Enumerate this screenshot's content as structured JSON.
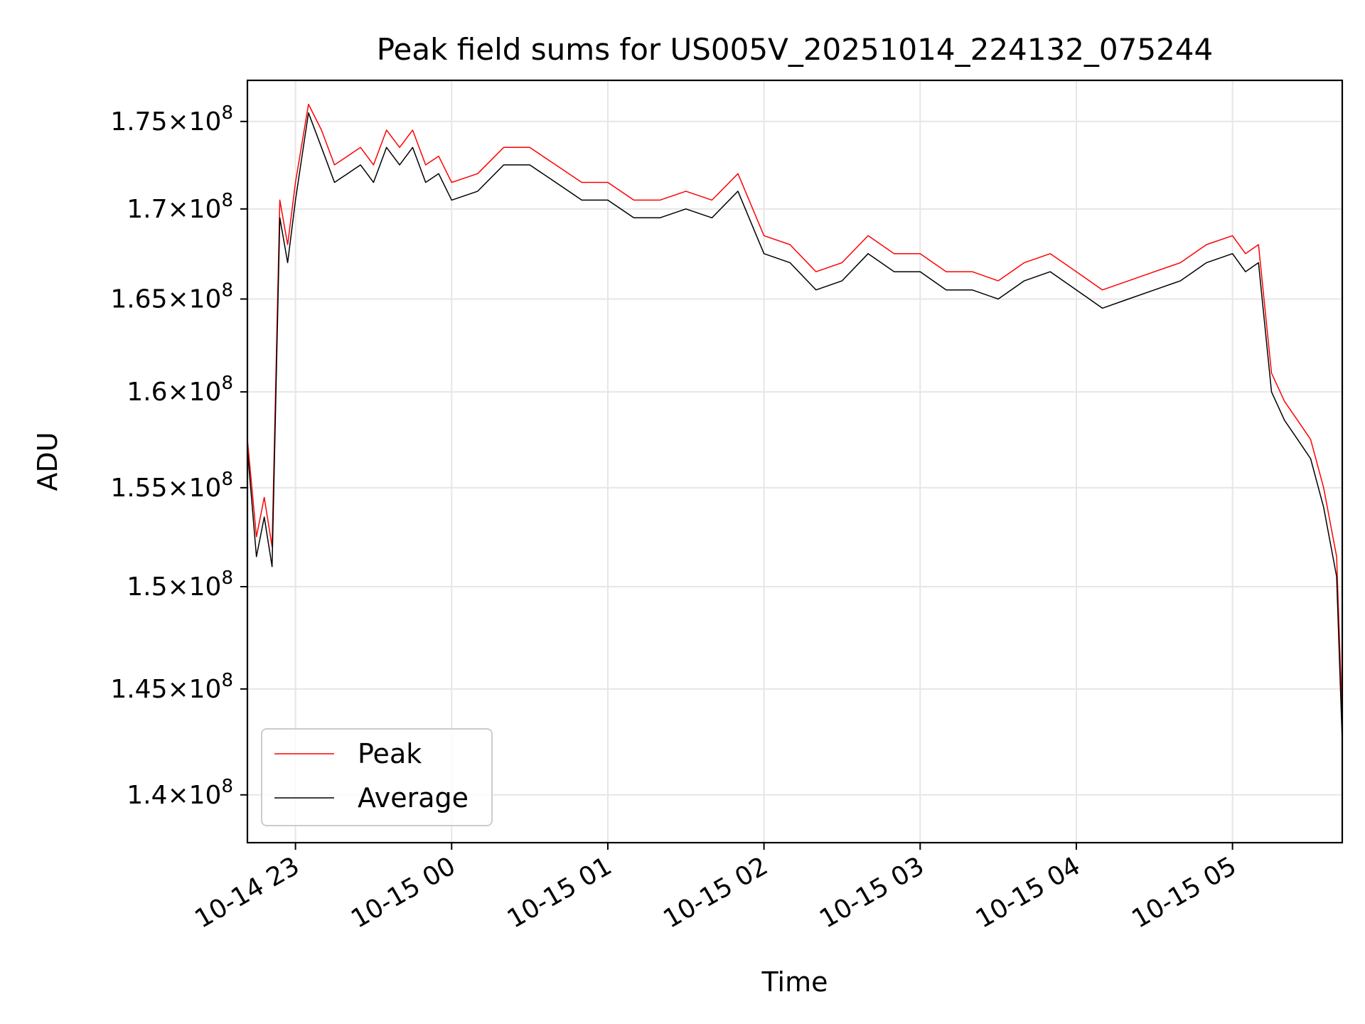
{
  "chart_data": {
    "type": "line",
    "title": "Peak field sums for US005V_20251014_224132_075244",
    "xlabel": "Time",
    "ylabel": "ADU",
    "y_scale": "log",
    "ylim": [
      137800000,
      177400000
    ],
    "xlim": [
      "2025-10-14 22:41:32",
      "2025-10-15 05:42:10"
    ],
    "grid": true,
    "legend_position": "lower-left",
    "x_ticks": [
      {
        "label": "10-14 23",
        "time": "2025-10-14 23:00"
      },
      {
        "label": "10-15 00",
        "time": "2025-10-15 00:00"
      },
      {
        "label": "10-15 01",
        "time": "2025-10-15 01:00"
      },
      {
        "label": "10-15 02",
        "time": "2025-10-15 02:00"
      },
      {
        "label": "10-15 03",
        "time": "2025-10-15 03:00"
      },
      {
        "label": "10-15 04",
        "time": "2025-10-15 04:00"
      },
      {
        "label": "10-15 05",
        "time": "2025-10-15 05:00"
      }
    ],
    "y_ticks": [
      {
        "mantissa": "1.4",
        "value": 140000000
      },
      {
        "mantissa": "1.45",
        "value": 145000000
      },
      {
        "mantissa": "1.5",
        "value": 150000000
      },
      {
        "mantissa": "1.55",
        "value": 155000000
      },
      {
        "mantissa": "1.6",
        "value": 160000000
      },
      {
        "mantissa": "1.65",
        "value": 165000000
      },
      {
        "mantissa": "1.7",
        "value": 170000000
      },
      {
        "mantissa": "1.75",
        "value": 175000000
      }
    ],
    "y_tick_suffix": "×10",
    "y_tick_exponent": "8",
    "x": [
      "2025-10-14 22:41:32",
      "2025-10-14 22:45:00",
      "2025-10-14 22:48:00",
      "2025-10-14 22:51:00",
      "2025-10-14 22:54:00",
      "2025-10-14 22:57:00",
      "2025-10-14 23:00:00",
      "2025-10-14 23:05:00",
      "2025-10-14 23:10:00",
      "2025-10-14 23:15:00",
      "2025-10-14 23:20:00",
      "2025-10-14 23:25:00",
      "2025-10-14 23:30:00",
      "2025-10-14 23:35:00",
      "2025-10-14 23:40:00",
      "2025-10-14 23:45:00",
      "2025-10-14 23:50:00",
      "2025-10-14 23:55:00",
      "2025-10-15 00:00:00",
      "2025-10-15 00:10:00",
      "2025-10-15 00:20:00",
      "2025-10-15 00:30:00",
      "2025-10-15 00:40:00",
      "2025-10-15 00:50:00",
      "2025-10-15 01:00:00",
      "2025-10-15 01:10:00",
      "2025-10-15 01:20:00",
      "2025-10-15 01:30:00",
      "2025-10-15 01:40:00",
      "2025-10-15 01:50:00",
      "2025-10-15 02:00:00",
      "2025-10-15 02:10:00",
      "2025-10-15 02:20:00",
      "2025-10-15 02:30:00",
      "2025-10-15 02:40:00",
      "2025-10-15 02:50:00",
      "2025-10-15 03:00:00",
      "2025-10-15 03:10:00",
      "2025-10-15 03:20:00",
      "2025-10-15 03:30:00",
      "2025-10-15 03:40:00",
      "2025-10-15 03:50:00",
      "2025-10-15 04:00:00",
      "2025-10-15 04:10:00",
      "2025-10-15 04:20:00",
      "2025-10-15 04:30:00",
      "2025-10-15 04:40:00",
      "2025-10-15 04:50:00",
      "2025-10-15 05:00:00",
      "2025-10-15 05:05:00",
      "2025-10-15 05:10:00",
      "2025-10-15 05:15:00",
      "2025-10-15 05:20:00",
      "2025-10-15 05:25:00",
      "2025-10-15 05:30:00",
      "2025-10-15 05:35:00",
      "2025-10-15 05:40:00",
      "2025-10-15 05:42:10"
    ],
    "series": [
      {
        "name": "Peak",
        "color": "#ff0000",
        "values": [
          157500000,
          152500000,
          154500000,
          152000000,
          170500000,
          168000000,
          171500000,
          176000000,
          174500000,
          172500000,
          173000000,
          173500000,
          172500000,
          174500000,
          173500000,
          174500000,
          172500000,
          173000000,
          171500000,
          172000000,
          173500000,
          173500000,
          172500000,
          171500000,
          171500000,
          170500000,
          170500000,
          171000000,
          170500000,
          172000000,
          168500000,
          168000000,
          166500000,
          167000000,
          168500000,
          167500000,
          167500000,
          166500000,
          166500000,
          166000000,
          167000000,
          167500000,
          166500000,
          165500000,
          166000000,
          166500000,
          167000000,
          168000000,
          168500000,
          167500000,
          168000000,
          161000000,
          159500000,
          158500000,
          157500000,
          155000000,
          151500000,
          143500000
        ]
      },
      {
        "name": "Average",
        "color": "#000000",
        "values": [
          157000000,
          151500000,
          153500000,
          151000000,
          169500000,
          167000000,
          170500000,
          175500000,
          173500000,
          171500000,
          172000000,
          172500000,
          171500000,
          173500000,
          172500000,
          173500000,
          171500000,
          172000000,
          170500000,
          171000000,
          172500000,
          172500000,
          171500000,
          170500000,
          170500000,
          169500000,
          169500000,
          170000000,
          169500000,
          171000000,
          167500000,
          167000000,
          165500000,
          166000000,
          167500000,
          166500000,
          166500000,
          165500000,
          165500000,
          165000000,
          166000000,
          166500000,
          165500000,
          164500000,
          165000000,
          165500000,
          166000000,
          167000000,
          167500000,
          166500000,
          167000000,
          160000000,
          158500000,
          157500000,
          156500000,
          154000000,
          150500000,
          142500000
        ]
      }
    ]
  }
}
